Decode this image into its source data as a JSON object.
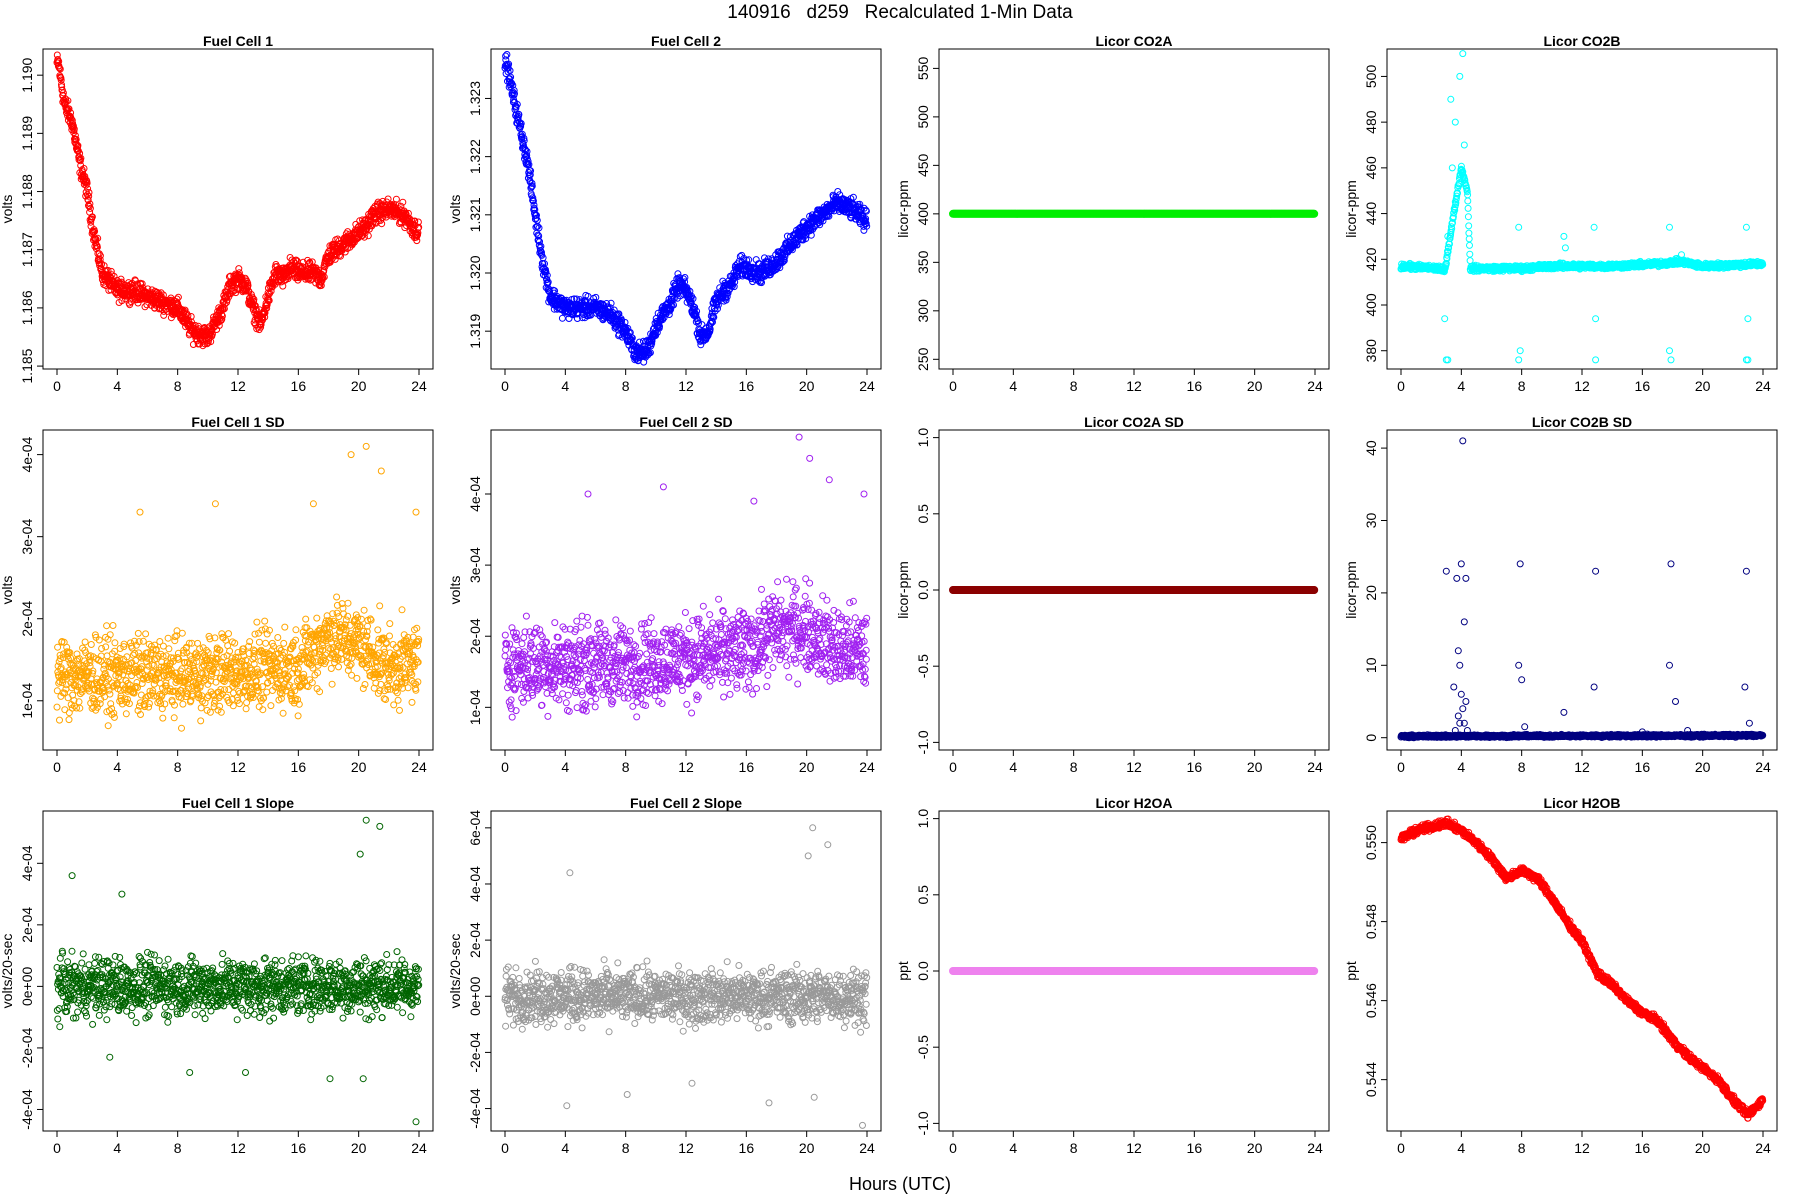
{
  "main_title": "140916   d259   Recalculated 1-Min Data",
  "x_axis_label": "Hours (UTC)",
  "x_ticks": [
    0,
    4,
    8,
    12,
    16,
    20,
    24
  ],
  "chart_data": [
    {
      "id": "p1",
      "title": "Fuel Cell 1",
      "type": "scatter",
      "ylabel": "volts",
      "color": "#ff0000",
      "xlim": [
        0,
        24
      ],
      "ylim": [
        1.18495,
        1.19045
      ],
      "yticks": [
        1.185,
        1.186,
        1.187,
        1.188,
        1.189,
        1.19
      ],
      "ytick_labels": [
        "1.185",
        "1.186",
        "1.187",
        "1.188",
        "1.189",
        "1.190"
      ],
      "x": [
        0.1,
        0.5,
        1.0,
        1.5,
        2.0,
        2.5,
        3.0,
        4.0,
        5.0,
        6.0,
        7.0,
        8.0,
        8.5,
        9.0,
        10.0,
        11.0,
        11.5,
        12.0,
        12.5,
        13.0,
        13.5,
        14.0,
        14.5,
        15.0,
        15.5,
        16.0,
        17.0,
        17.5,
        18.0,
        19.0,
        20.0,
        20.5,
        21.0,
        22.0,
        23.0,
        23.9
      ],
      "y": [
        1.1902,
        1.1895,
        1.1892,
        1.1885,
        1.188,
        1.1872,
        1.1866,
        1.1863,
        1.1863,
        1.1862,
        1.1861,
        1.186,
        1.1858,
        1.1856,
        1.1855,
        1.186,
        1.1864,
        1.1865,
        1.1864,
        1.186,
        1.1857,
        1.1862,
        1.1866,
        1.1865,
        1.1867,
        1.1866,
        1.1866,
        1.1865,
        1.1869,
        1.1871,
        1.1873,
        1.1874,
        1.1876,
        1.1877,
        1.1876,
        1.1873
      ],
      "noise": 0.00015
    },
    {
      "id": "p2",
      "title": "Fuel Cell 2",
      "type": "scatter",
      "ylabel": "volts",
      "color": "#0000ff",
      "xlim": [
        0,
        24
      ],
      "ylim": [
        1.31835,
        1.32385
      ],
      "yticks": [
        1.319,
        1.32,
        1.321,
        1.322,
        1.323
      ],
      "ytick_labels": [
        "1.319",
        "1.320",
        "1.321",
        "1.322",
        "1.323"
      ],
      "x": [
        0.1,
        0.5,
        1.0,
        1.5,
        2.0,
        2.5,
        3.0,
        4.0,
        5.0,
        6.0,
        7.0,
        8.0,
        8.5,
        9.0,
        9.5,
        10.0,
        11.0,
        11.5,
        12.0,
        12.5,
        13.0,
        13.5,
        14.0,
        14.5,
        15.0,
        15.5,
        16.0,
        17.0,
        18.0,
        19.0,
        20.0,
        21.0,
        22.0,
        23.0,
        23.9
      ],
      "y": [
        1.3236,
        1.3231,
        1.3225,
        1.3219,
        1.321,
        1.3202,
        1.3196,
        1.3194,
        1.3194,
        1.3194,
        1.3193,
        1.319,
        1.3187,
        1.3186,
        1.3187,
        1.3191,
        1.3195,
        1.3198,
        1.3197,
        1.3194,
        1.3189,
        1.319,
        1.3195,
        1.3197,
        1.3198,
        1.3201,
        1.3201,
        1.32,
        1.3202,
        1.3205,
        1.3208,
        1.321,
        1.3212,
        1.3211,
        1.3209
      ],
      "noise": 0.00015
    },
    {
      "id": "p3",
      "title": "Licor CO2A",
      "type": "scatter",
      "ylabel": "licor-ppm",
      "color": "#00ee00",
      "xlim": [
        0,
        24
      ],
      "ylim": [
        240,
        570
      ],
      "yticks": [
        250,
        300,
        350,
        400,
        450,
        500,
        550
      ],
      "ytick_labels": [
        "250",
        "300",
        "350",
        "400",
        "450",
        "500",
        "550"
      ],
      "x": [
        0,
        24
      ],
      "y": [
        400,
        400
      ],
      "noise": 0,
      "thick": true
    },
    {
      "id": "p4",
      "title": "Licor CO2B",
      "type": "scatter",
      "ylabel": "licor-ppm",
      "color": "#00ffff",
      "xlim": [
        0,
        24
      ],
      "ylim": [
        372,
        512
      ],
      "yticks": [
        380,
        400,
        420,
        440,
        460,
        480,
        500
      ],
      "ytick_labels": [
        "380",
        "400",
        "420",
        "440",
        "460",
        "480",
        "500"
      ],
      "x": [
        0.0,
        2.5,
        2.9,
        3.5,
        4.0,
        4.4,
        4.6,
        8.0,
        10.0,
        14.0,
        17.0,
        18.5,
        20.0,
        23.9
      ],
      "y": [
        417,
        416,
        415,
        440,
        460,
        450,
        416,
        416,
        417,
        417,
        418,
        419,
        417,
        418
      ],
      "noise": 1.0,
      "extra_points": [
        [
          3.3,
          490
        ],
        [
          3.6,
          480
        ],
        [
          3.9,
          500
        ],
        [
          4.1,
          510
        ],
        [
          4.2,
          470
        ],
        [
          3.1,
          430
        ],
        [
          3.4,
          460
        ],
        [
          3.0,
          376
        ],
        [
          3.1,
          376
        ],
        [
          7.8,
          434
        ],
        [
          7.8,
          376
        ],
        [
          7.9,
          380
        ],
        [
          12.8,
          434
        ],
        [
          12.9,
          394
        ],
        [
          12.9,
          376
        ],
        [
          17.8,
          434
        ],
        [
          17.9,
          376
        ],
        [
          17.8,
          380
        ],
        [
          22.9,
          434
        ],
        [
          23.0,
          394
        ],
        [
          22.9,
          376
        ],
        [
          23.0,
          376
        ],
        [
          10.8,
          430
        ],
        [
          10.9,
          425
        ],
        [
          2.9,
          394
        ],
        [
          18.6,
          422
        ]
      ]
    },
    {
      "id": "p5",
      "title": "Fuel Cell 1 SD",
      "type": "scatter",
      "ylabel": "volts",
      "color": "#ffa500",
      "xlim": [
        0,
        24
      ],
      "ylim": [
        4e-05,
        0.00043
      ],
      "yticks": [
        0.0001,
        0.0002,
        0.0003,
        0.0004
      ],
      "ytick_labels": [
        "1e-04",
        "2e-04",
        "3e-04",
        "4e-04"
      ],
      "x": [
        0,
        8,
        16,
        18,
        20,
        22,
        24
      ],
      "y": [
        0.00013,
        0.00013,
        0.00014,
        0.00018,
        0.00017,
        0.00014,
        0.00015
      ],
      "noise": 4e-05,
      "extra_points": [
        [
          5.5,
          0.00033
        ],
        [
          10.5,
          0.00034
        ],
        [
          19.5,
          0.0004
        ],
        [
          20.5,
          0.00041
        ],
        [
          21.5,
          0.00038
        ],
        [
          17.0,
          0.00034
        ],
        [
          23.8,
          0.00033
        ]
      ]
    },
    {
      "id": "p6",
      "title": "Fuel Cell 2 SD",
      "type": "scatter",
      "ylabel": "volts",
      "color": "#a020f0",
      "xlim": [
        0,
        24
      ],
      "ylim": [
        4e-05,
        0.00049
      ],
      "yticks": [
        0.0001,
        0.0002,
        0.0003,
        0.0004
      ],
      "ytick_labels": [
        "1e-04",
        "2e-04",
        "3e-04",
        "4e-04"
      ],
      "x": [
        0,
        8,
        16,
        18,
        20,
        22,
        24
      ],
      "y": [
        0.00016,
        0.00016,
        0.00018,
        0.00021,
        0.00021,
        0.00018,
        0.00018
      ],
      "noise": 5e-05,
      "extra_points": [
        [
          5.5,
          0.0004
        ],
        [
          10.5,
          0.00041
        ],
        [
          19.5,
          0.00048
        ],
        [
          20.2,
          0.00045
        ],
        [
          21.5,
          0.00042
        ],
        [
          23.8,
          0.0004
        ],
        [
          16.5,
          0.00039
        ]
      ]
    },
    {
      "id": "p7",
      "title": "Licor CO2A SD",
      "type": "scatter",
      "ylabel": "licor-ppm",
      "color": "#8b0000",
      "xlim": [
        0,
        24
      ],
      "ylim": [
        -1.05,
        1.05
      ],
      "yticks": [
        -1.0,
        -0.5,
        0.0,
        0.5,
        1.0
      ],
      "ytick_labels": [
        "-1.0",
        "-0.5",
        "0.0",
        "0.5",
        "1.0"
      ],
      "x": [
        0,
        24
      ],
      "y": [
        0,
        0
      ],
      "noise": 0,
      "thick": true
    },
    {
      "id": "p8",
      "title": "Licor CO2B SD",
      "type": "scatter",
      "ylabel": "licor-ppm",
      "color": "#000080",
      "xlim": [
        0,
        24
      ],
      "ylim": [
        -1.7,
        42.5
      ],
      "yticks": [
        0,
        10,
        20,
        30,
        40
      ],
      "ytick_labels": [
        "0",
        "10",
        "20",
        "30",
        "40"
      ],
      "x": [
        0,
        24
      ],
      "y": [
        0.2,
        0.3
      ],
      "noise": 0.15,
      "extra_points": [
        [
          3.0,
          23
        ],
        [
          3.5,
          7
        ],
        [
          3.7,
          22
        ],
        [
          3.8,
          12
        ],
        [
          3.9,
          10
        ],
        [
          4.0,
          24
        ],
        [
          4.1,
          41
        ],
        [
          4.2,
          16
        ],
        [
          4.3,
          22
        ],
        [
          4.0,
          6
        ],
        [
          3.8,
          3
        ],
        [
          4.1,
          4
        ],
        [
          4.3,
          5
        ],
        [
          3.9,
          2
        ],
        [
          4.2,
          2
        ],
        [
          3.6,
          1
        ],
        [
          4.4,
          1
        ],
        [
          7.8,
          10
        ],
        [
          7.9,
          24
        ],
        [
          8.0,
          8
        ],
        [
          8.2,
          1.5
        ],
        [
          10.8,
          3.5
        ],
        [
          12.8,
          7
        ],
        [
          12.9,
          23
        ],
        [
          17.8,
          10
        ],
        [
          17.9,
          24
        ],
        [
          18.2,
          5
        ],
        [
          22.8,
          7
        ],
        [
          22.9,
          23
        ],
        [
          23.1,
          2
        ],
        [
          19.0,
          1
        ],
        [
          16.0,
          0.8
        ]
      ]
    },
    {
      "id": "p9",
      "title": "Fuel Cell 1 Slope",
      "type": "scatter",
      "ylabel": "volts/20-sec",
      "color": "#006400",
      "xlim": [
        0,
        24
      ],
      "ylim": [
        -0.00047,
        0.00057
      ],
      "yticks": [
        -0.0004,
        -0.0002,
        0.0,
        0.0002,
        0.0004
      ],
      "ytick_labels": [
        "-4e-04",
        "-2e-04",
        "0e+00",
        "2e-04",
        "4e-04"
      ],
      "x": [
        0,
        24
      ],
      "y": [
        0,
        0
      ],
      "noise": 8e-05,
      "extra_points": [
        [
          1.0,
          0.00036
        ],
        [
          4.3,
          0.0003
        ],
        [
          20.5,
          0.00054
        ],
        [
          21.4,
          0.00052
        ],
        [
          20.1,
          0.00043
        ],
        [
          23.8,
          -0.00044
        ],
        [
          8.8,
          -0.00028
        ],
        [
          20.3,
          -0.0003
        ],
        [
          18.1,
          -0.0003
        ],
        [
          12.5,
          -0.00028
        ],
        [
          3.5,
          -0.00023
        ]
      ]
    },
    {
      "id": "p10",
      "title": "Fuel Cell 2 Slope",
      "type": "scatter",
      "ylabel": "volts/20-sec",
      "color": "#999999",
      "xlim": [
        0,
        24
      ],
      "ylim": [
        -0.00048,
        0.00066
      ],
      "yticks": [
        -0.0004,
        -0.0002,
        0.0,
        0.0002,
        0.0004,
        0.0006
      ],
      "ytick_labels": [
        "-4e-04",
        "-2e-04",
        "0e+00",
        "2e-04",
        "4e-04",
        "6e-04"
      ],
      "x": [
        0,
        24
      ],
      "y": [
        0,
        0
      ],
      "noise": 8e-05,
      "extra_points": [
        [
          20.4,
          0.0006
        ],
        [
          21.4,
          0.00054
        ],
        [
          20.1,
          0.0005
        ],
        [
          4.3,
          0.00044
        ],
        [
          23.7,
          -0.00046
        ],
        [
          4.1,
          -0.00039
        ],
        [
          20.5,
          -0.00036
        ],
        [
          8.1,
          -0.00035
        ],
        [
          12.4,
          -0.00031
        ],
        [
          17.5,
          -0.00038
        ]
      ]
    },
    {
      "id": "p11",
      "title": "Licor H2OA",
      "type": "scatter",
      "ylabel": "ppt",
      "color": "#ee82ee",
      "xlim": [
        0,
        24
      ],
      "ylim": [
        -1.05,
        1.05
      ],
      "yticks": [
        -1.0,
        -0.5,
        0.0,
        0.5,
        1.0
      ],
      "ytick_labels": [
        "-1.0",
        "-0.5",
        "0.0",
        "0.5",
        "1.0"
      ],
      "x": [
        0,
        24
      ],
      "y": [
        0,
        0
      ],
      "noise": 0,
      "thick": true
    },
    {
      "id": "p12",
      "title": "Licor H2OB",
      "type": "scatter",
      "ylabel": "ppt",
      "color": "#ff0000",
      "xlim": [
        0,
        24
      ],
      "ylim": [
        0.5427,
        0.5508
      ],
      "yticks": [
        0.544,
        0.546,
        0.548,
        0.55
      ],
      "ytick_labels": [
        "0.544",
        "0.546",
        "0.548",
        "0.550"
      ],
      "x": [
        0.0,
        1.0,
        2.0,
        3.0,
        4.0,
        5.0,
        6.0,
        7.0,
        8.0,
        9.0,
        10.0,
        11.0,
        12.0,
        13.0,
        14.0,
        15.0,
        16.0,
        17.0,
        18.0,
        19.0,
        20.0,
        21.0,
        22.0,
        23.0,
        24.0
      ],
      "y": [
        0.5501,
        0.5503,
        0.5504,
        0.5505,
        0.5503,
        0.55,
        0.5496,
        0.5491,
        0.5493,
        0.5491,
        0.5486,
        0.548,
        0.5475,
        0.5467,
        0.5464,
        0.546,
        0.5457,
        0.5455,
        0.545,
        0.5446,
        0.5443,
        0.544,
        0.5435,
        0.5431,
        0.5435
      ],
      "noise": 8e-05
    }
  ]
}
